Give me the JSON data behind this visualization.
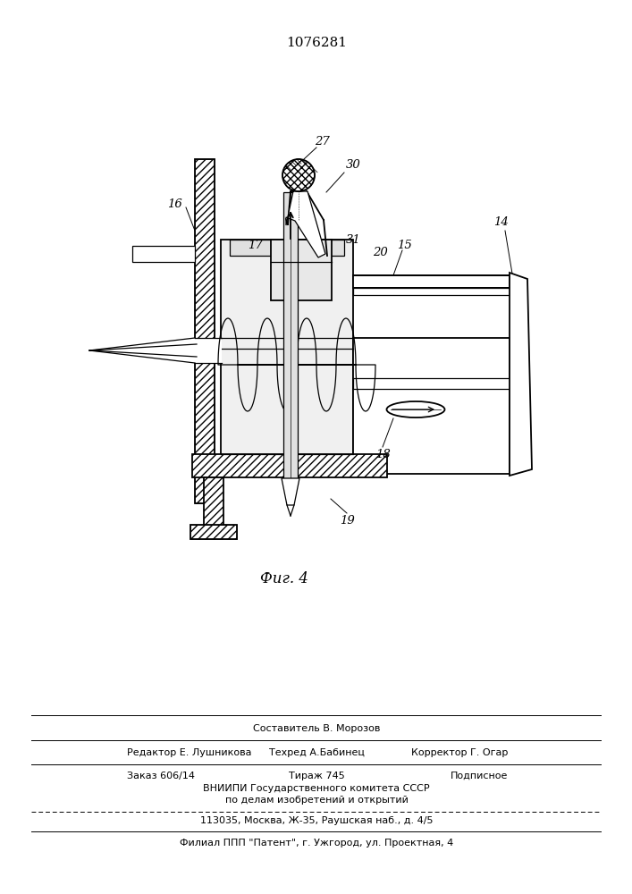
{
  "patent_number": "1076281",
  "fig_label": "Фиг. 4",
  "footer_compose": "Составитель В. Морозов",
  "footer_editor": "Редактор Е. Лушникова",
  "footer_techr": "Техред А.Бабинец",
  "footer_corr": "Корректор Г. Огар",
  "footer_order": "Заказ 606/14",
  "footer_tirazh": "Тираж 745",
  "footer_podp": "Подписное",
  "footer_vniip1": "ВНИИПИ Государственного комитета СССР",
  "footer_vniip2": "по делам изобретений и открытий",
  "footer_addr": "113035, Москва, Ж-35, Раушская наб., д. 4/5",
  "footer_filial": "Филиал ППП \"Патент\", г. Ужгород, ул. Проектная, 4",
  "bg_color": "#ffffff"
}
